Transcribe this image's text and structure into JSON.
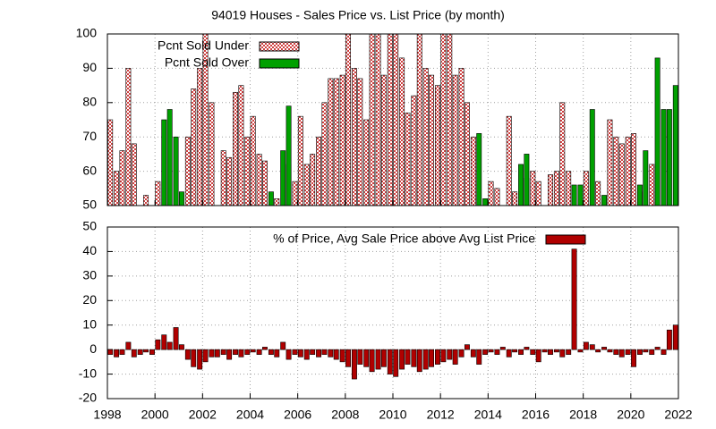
{
  "chart_data": [
    {
      "type": "bar",
      "title": "94019 Houses - Sales Price vs. List Price (by month)",
      "xlim": [
        1998,
        2022
      ],
      "xticks": [
        1998,
        2000,
        2002,
        2004,
        2006,
        2008,
        2010,
        2012,
        2014,
        2016,
        2018,
        2020,
        2022
      ],
      "ylim": [
        50,
        100
      ],
      "yticks": [
        50,
        60,
        70,
        80,
        90,
        100
      ],
      "grid": true,
      "x": [
        1998.12,
        1998.38,
        1998.62,
        1998.88,
        1999.12,
        1999.38,
        1999.62,
        1999.88,
        2000.12,
        2000.38,
        2000.62,
        2000.88,
        2001.12,
        2001.38,
        2001.62,
        2001.88,
        2002.12,
        2002.38,
        2002.62,
        2002.88,
        2003.12,
        2003.38,
        2003.62,
        2003.88,
        2004.12,
        2004.38,
        2004.62,
        2004.88,
        2005.12,
        2005.38,
        2005.62,
        2005.88,
        2006.12,
        2006.38,
        2006.62,
        2006.88,
        2007.12,
        2007.38,
        2007.62,
        2007.88,
        2008.12,
        2008.38,
        2008.62,
        2008.88,
        2009.12,
        2009.38,
        2009.62,
        2009.88,
        2010.12,
        2010.38,
        2010.62,
        2010.88,
        2011.12,
        2011.38,
        2011.62,
        2011.88,
        2012.12,
        2012.38,
        2012.62,
        2012.88,
        2013.12,
        2013.38,
        2013.62,
        2013.88,
        2014.12,
        2014.38,
        2014.62,
        2014.88,
        2015.12,
        2015.38,
        2015.62,
        2015.88,
        2016.12,
        2016.38,
        2016.62,
        2016.88,
        2017.12,
        2017.38,
        2017.62,
        2017.88,
        2018.12,
        2018.38,
        2018.62,
        2018.88,
        2019.12,
        2019.38,
        2019.62,
        2019.88,
        2020.12,
        2020.38,
        2020.62,
        2020.88,
        2021.12,
        2021.38,
        2021.62,
        2021.88
      ],
      "series": [
        {
          "name": "Pcnt Sold Under",
          "color": "#d04040",
          "pattern": true,
          "values": [
            75,
            60,
            66,
            90,
            68,
            null,
            53,
            null,
            57,
            null,
            null,
            null,
            null,
            70,
            84,
            90,
            100,
            80,
            null,
            66,
            64,
            83,
            85,
            70,
            76,
            65,
            63,
            null,
            52,
            null,
            62,
            57,
            76,
            62,
            65,
            70,
            80,
            87,
            87,
            88,
            100,
            90,
            87,
            75,
            100,
            100,
            88,
            100,
            100,
            93,
            77,
            82,
            100,
            90,
            88,
            85,
            100,
            100,
            88,
            90,
            80,
            70,
            null,
            null,
            57,
            55,
            null,
            76,
            54,
            null,
            58,
            60,
            57,
            null,
            59,
            60,
            80,
            60,
            null,
            null,
            60,
            null,
            57,
            null,
            75,
            70,
            68,
            70,
            71,
            54,
            null,
            62,
            null,
            null,
            null,
            null
          ]
        },
        {
          "name": "Pcnt Sold Over",
          "color": "#00a000",
          "pattern": false,
          "values": [
            null,
            null,
            null,
            null,
            null,
            null,
            null,
            null,
            null,
            75,
            78,
            70,
            54,
            null,
            null,
            null,
            null,
            null,
            null,
            null,
            null,
            null,
            null,
            null,
            null,
            null,
            null,
            54,
            null,
            66,
            79,
            null,
            null,
            null,
            null,
            null,
            null,
            null,
            null,
            null,
            null,
            null,
            null,
            null,
            null,
            null,
            null,
            null,
            null,
            null,
            null,
            null,
            null,
            null,
            null,
            null,
            null,
            null,
            null,
            null,
            null,
            null,
            71,
            52,
            null,
            null,
            null,
            null,
            null,
            62,
            65,
            null,
            null,
            null,
            null,
            null,
            null,
            null,
            56,
            56,
            null,
            78,
            null,
            53,
            null,
            null,
            null,
            null,
            null,
            56,
            66,
            null,
            93,
            78,
            78,
            85
          ]
        }
      ]
    },
    {
      "type": "bar",
      "xlim": [
        1998,
        2022
      ],
      "xticks": [
        1998,
        2000,
        2002,
        2004,
        2006,
        2008,
        2010,
        2012,
        2014,
        2016,
        2018,
        2020,
        2022
      ],
      "ylim": [
        -20,
        50
      ],
      "yticks": [
        -20,
        -10,
        0,
        10,
        20,
        30,
        40,
        50
      ],
      "grid": true,
      "x": [
        1998.12,
        1998.38,
        1998.62,
        1998.88,
        1999.12,
        1999.38,
        1999.62,
        1999.88,
        2000.12,
        2000.38,
        2000.62,
        2000.88,
        2001.12,
        2001.38,
        2001.62,
        2001.88,
        2002.12,
        2002.38,
        2002.62,
        2002.88,
        2003.12,
        2003.38,
        2003.62,
        2003.88,
        2004.12,
        2004.38,
        2004.62,
        2004.88,
        2005.12,
        2005.38,
        2005.62,
        2005.88,
        2006.12,
        2006.38,
        2006.62,
        2006.88,
        2007.12,
        2007.38,
        2007.62,
        2007.88,
        2008.12,
        2008.38,
        2008.62,
        2008.88,
        2009.12,
        2009.38,
        2009.62,
        2009.88,
        2010.12,
        2010.38,
        2010.62,
        2010.88,
        2011.12,
        2011.38,
        2011.62,
        2011.88,
        2012.12,
        2012.38,
        2012.62,
        2012.88,
        2013.12,
        2013.38,
        2013.62,
        2013.88,
        2014.12,
        2014.38,
        2014.62,
        2014.88,
        2015.12,
        2015.38,
        2015.62,
        2015.88,
        2016.12,
        2016.38,
        2016.62,
        2016.88,
        2017.12,
        2017.38,
        2017.62,
        2017.88,
        2018.12,
        2018.38,
        2018.62,
        2018.88,
        2019.12,
        2019.38,
        2019.62,
        2019.88,
        2020.12,
        2020.38,
        2020.62,
        2020.88,
        2021.12,
        2021.38,
        2021.62,
        2021.88
      ],
      "series": [
        {
          "name": "% of Price, Avg Sale Price above Avg List Price",
          "color": "#b00000",
          "pattern": false,
          "values": [
            -2,
            -3,
            -2,
            3,
            -3,
            -2,
            -1,
            -2,
            4,
            6,
            3,
            9,
            2,
            -4,
            -7,
            -8,
            -5,
            -3,
            -3,
            -2,
            -4,
            -2,
            -3,
            -2,
            -1,
            -2,
            1,
            -2,
            -3,
            3,
            -4,
            -2,
            -3,
            -4,
            -2,
            -3,
            -2,
            -3,
            -4,
            -5,
            -7,
            -12,
            -6,
            -7,
            -9,
            -8,
            -7,
            -10,
            -11,
            -8,
            -6,
            -7,
            -9,
            -8,
            -7,
            -6,
            -5,
            -4,
            -6,
            -3,
            2,
            -3,
            -6,
            -2,
            -1,
            -2,
            1,
            -3,
            -1,
            -2,
            1,
            -2,
            -5,
            -1,
            -2,
            -1,
            -3,
            -2,
            41,
            -1,
            3,
            2,
            -1,
            1,
            -1,
            -2,
            -3,
            -2,
            -7,
            -2,
            -1,
            -2,
            1,
            -2,
            8,
            10
          ]
        }
      ]
    }
  ]
}
